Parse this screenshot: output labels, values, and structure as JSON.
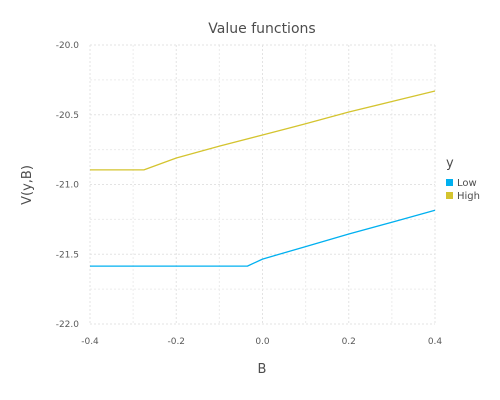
{
  "chart_data": {
    "type": "line",
    "title": "Value functions",
    "xlabel": "B",
    "ylabel": "V(y,B)",
    "xlim": [
      -0.4,
      0.4
    ],
    "ylim": [
      -22.0,
      -20.0
    ],
    "xticks": [
      -0.4,
      -0.2,
      0.0,
      0.2,
      0.4
    ],
    "xtick_labels": [
      "-0.4",
      "-0.2",
      "0.0",
      "0.2",
      "0.4"
    ],
    "yticks": [
      -20.0,
      -20.5,
      -21.0,
      -21.5,
      -22.0
    ],
    "ytick_labels": [
      "-20.0",
      "-20.5",
      "-21.0",
      "-21.5",
      "-22.0"
    ],
    "grid": true,
    "legend": {
      "title": "y",
      "position": "right"
    },
    "series": [
      {
        "name": "Low",
        "color": "#00b0f0",
        "x": [
          -0.4,
          -0.035,
          0.0,
          0.1,
          0.2,
          0.3,
          0.4
        ],
        "y": [
          -21.585,
          -21.585,
          -21.535,
          -21.445,
          -21.355,
          -21.27,
          -21.185
        ]
      },
      {
        "name": "High",
        "color": "#d4c42f",
        "x": [
          -0.4,
          -0.275,
          -0.2,
          -0.1,
          0.0,
          0.1,
          0.2,
          0.3,
          0.4
        ],
        "y": [
          -20.895,
          -20.895,
          -20.81,
          -20.725,
          -20.645,
          -20.565,
          -20.48,
          -20.405,
          -20.33
        ]
      }
    ]
  }
}
